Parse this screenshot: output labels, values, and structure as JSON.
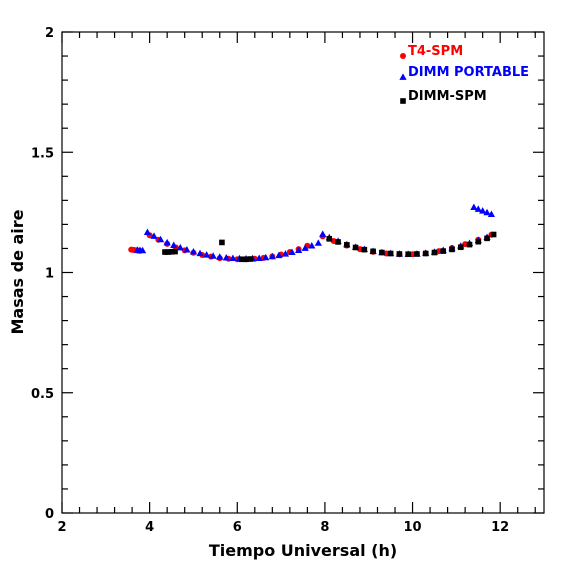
{
  "chart_data": {
    "type": "scatter",
    "title": "",
    "xlabel": "Tiempo Universal (h)",
    "ylabel": "Masas de aire",
    "xlim": [
      2,
      13
    ],
    "ylim": [
      0,
      2
    ],
    "xticks": [
      2,
      4,
      6,
      8,
      10,
      12
    ],
    "yticks": [
      0,
      0.5,
      1,
      1.5,
      2
    ],
    "ytick_labels": [
      "0",
      "0.5",
      "1",
      "1.5",
      "2"
    ],
    "legend_position": "top-right",
    "series": [
      {
        "name": "T4-SPM",
        "marker": "circle",
        "color": "#ff0000",
        "x": [
          3.58,
          3.62,
          3.66,
          3.7,
          3.74,
          3.78,
          4.0,
          4.2,
          4.4,
          4.6,
          4.8,
          5.0,
          5.2,
          5.4,
          5.6,
          5.8,
          6.0,
          6.2,
          6.4,
          6.6,
          6.8,
          7.0,
          7.2,
          7.4,
          7.6,
          7.95,
          8.2,
          8.5,
          8.8,
          9.1,
          9.4,
          9.7,
          10.0,
          10.3,
          10.6,
          10.9,
          11.2,
          11.5,
          11.8
        ],
        "y": [
          1.095,
          1.094,
          1.093,
          1.092,
          1.091,
          1.09,
          1.155,
          1.136,
          1.119,
          1.104,
          1.092,
          1.082,
          1.073,
          1.066,
          1.06,
          1.057,
          1.055,
          1.055,
          1.057,
          1.061,
          1.067,
          1.075,
          1.085,
          1.097,
          1.111,
          1.15,
          1.131,
          1.112,
          1.097,
          1.086,
          1.079,
          1.076,
          1.076,
          1.08,
          1.089,
          1.102,
          1.118,
          1.136,
          1.157
        ]
      },
      {
        "name": "DIMM PORTABLE",
        "marker": "triangle",
        "color": "#0000ff",
        "x": [
          3.72,
          3.78,
          3.84,
          3.95,
          4.1,
          4.25,
          4.4,
          4.55,
          4.7,
          4.85,
          5.0,
          5.15,
          5.3,
          5.45,
          5.6,
          5.75,
          5.9,
          6.05,
          6.2,
          6.35,
          6.5,
          6.65,
          6.8,
          6.95,
          7.1,
          7.25,
          7.4,
          7.55,
          7.7,
          7.85,
          7.95,
          8.1,
          8.3,
          8.5,
          8.7,
          8.9,
          9.1,
          9.3,
          9.5,
          9.7,
          9.9,
          10.1,
          10.3,
          10.5,
          10.7,
          10.9,
          11.1,
          11.3,
          11.5,
          11.7,
          11.4,
          11.5,
          11.6,
          11.7,
          11.8
        ],
        "y": [
          1.094,
          1.093,
          1.092,
          1.168,
          1.152,
          1.138,
          1.125,
          1.114,
          1.104,
          1.095,
          1.087,
          1.08,
          1.074,
          1.069,
          1.065,
          1.062,
          1.06,
          1.059,
          1.058,
          1.059,
          1.06,
          1.063,
          1.067,
          1.072,
          1.078,
          1.085,
          1.093,
          1.102,
          1.112,
          1.123,
          1.16,
          1.146,
          1.131,
          1.117,
          1.106,
          1.097,
          1.089,
          1.084,
          1.08,
          1.078,
          1.077,
          1.078,
          1.081,
          1.086,
          1.093,
          1.101,
          1.111,
          1.122,
          1.134,
          1.147,
          1.272,
          1.264,
          1.257,
          1.25,
          1.243
        ]
      },
      {
        "name": "DIMM-SPM",
        "marker": "square",
        "color": "#000000",
        "x": [
          4.35,
          4.42,
          4.5,
          4.58,
          5.65,
          6.1,
          6.2,
          6.3,
          8.1,
          8.3,
          8.5,
          8.7,
          8.9,
          9.1,
          9.3,
          9.5,
          9.7,
          9.9,
          10.1,
          10.3,
          10.5,
          10.7,
          10.9,
          11.1,
          11.3,
          11.5,
          11.7,
          11.85
        ],
        "y": [
          1.085,
          1.085,
          1.086,
          1.087,
          1.125,
          1.055,
          1.055,
          1.056,
          1.14,
          1.127,
          1.115,
          1.104,
          1.095,
          1.088,
          1.083,
          1.079,
          1.077,
          1.076,
          1.077,
          1.079,
          1.083,
          1.089,
          1.096,
          1.105,
          1.116,
          1.128,
          1.142,
          1.158
        ]
      }
    ]
  }
}
